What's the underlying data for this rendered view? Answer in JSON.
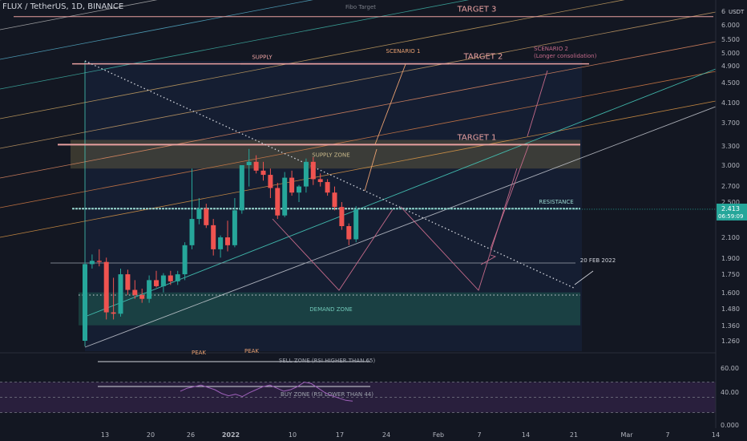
{
  "header": {
    "symbol": "FLUX / TetherUS, 1D, BINANCE",
    "currency": "USDT"
  },
  "colors": {
    "background": "#131722",
    "up": "#26a69a",
    "down": "#ef5350",
    "target_line": "#e8a0a0",
    "supply_fill": "#6b6240",
    "demand_fill": "#1f5c52",
    "rsi_band": "#7b3fa0",
    "axis_text": "#b2b5be"
  },
  "chart_data": {
    "type": "candlestick",
    "price_axis": {
      "ticks": [
        "6",
        "6.000",
        "5.500",
        "5.000",
        "4.900",
        "4.500",
        "4.100",
        "3.700",
        "3.300",
        "3.000",
        "2.700",
        "2.500",
        "2.300",
        "2.100",
        "1.900",
        "1.750",
        "1.600",
        "1.480",
        "1.360",
        "1.260"
      ],
      "scale": "log"
    },
    "rsi_axis": {
      "ticks": [
        "60.00",
        "40.00",
        "0.000"
      ]
    },
    "x_axis": {
      "ticks": [
        "13",
        "20",
        "26",
        "2022",
        "10",
        "17",
        "24",
        "Feb",
        "7",
        "14",
        "21",
        "Mar",
        "7",
        "14"
      ]
    },
    "current_price": "2.413",
    "countdown": "06:59:09",
    "candles": [
      {
        "o": 1.26,
        "h": 1.87,
        "l": 1.25,
        "c": 1.84
      },
      {
        "o": 1.84,
        "h": 1.93,
        "l": 1.8,
        "c": 1.87
      },
      {
        "o": 1.87,
        "h": 1.98,
        "l": 1.82,
        "c": 1.86
      },
      {
        "o": 1.86,
        "h": 1.9,
        "l": 1.4,
        "c": 1.45
      },
      {
        "o": 1.45,
        "h": 1.72,
        "l": 1.4,
        "c": 1.44
      },
      {
        "o": 1.44,
        "h": 1.8,
        "l": 1.42,
        "c": 1.75
      },
      {
        "o": 1.75,
        "h": 1.79,
        "l": 1.58,
        "c": 1.62
      },
      {
        "o": 1.62,
        "h": 1.7,
        "l": 1.55,
        "c": 1.58
      },
      {
        "o": 1.58,
        "h": 1.63,
        "l": 1.52,
        "c": 1.55
      },
      {
        "o": 1.55,
        "h": 1.74,
        "l": 1.52,
        "c": 1.7
      },
      {
        "o": 1.7,
        "h": 1.78,
        "l": 1.64,
        "c": 1.65
      },
      {
        "o": 1.65,
        "h": 1.76,
        "l": 1.6,
        "c": 1.74
      },
      {
        "o": 1.74,
        "h": 1.78,
        "l": 1.66,
        "c": 1.69
      },
      {
        "o": 1.69,
        "h": 1.78,
        "l": 1.66,
        "c": 1.75
      },
      {
        "o": 1.75,
        "h": 2.05,
        "l": 1.7,
        "c": 2.02
      },
      {
        "o": 2.02,
        "h": 2.95,
        "l": 1.98,
        "c": 2.3
      },
      {
        "o": 2.3,
        "h": 2.55,
        "l": 2.24,
        "c": 2.42
      },
      {
        "o": 2.42,
        "h": 2.48,
        "l": 2.2,
        "c": 2.23
      },
      {
        "o": 2.23,
        "h": 2.3,
        "l": 1.92,
        "c": 1.98
      },
      {
        "o": 1.98,
        "h": 2.12,
        "l": 1.9,
        "c": 2.1
      },
      {
        "o": 2.1,
        "h": 2.28,
        "l": 1.96,
        "c": 2.02
      },
      {
        "o": 2.02,
        "h": 2.55,
        "l": 2.0,
        "c": 2.4
      },
      {
        "o": 2.4,
        "h": 3.0,
        "l": 2.36,
        "c": 3.0
      },
      {
        "o": 3.0,
        "h": 3.25,
        "l": 2.7,
        "c": 3.05
      },
      {
        "o": 3.05,
        "h": 3.15,
        "l": 2.88,
        "c": 2.92
      },
      {
        "o": 2.92,
        "h": 3.05,
        "l": 2.78,
        "c": 2.86
      },
      {
        "o": 2.86,
        "h": 2.95,
        "l": 2.55,
        "c": 2.68
      },
      {
        "o": 2.68,
        "h": 2.75,
        "l": 2.3,
        "c": 2.34
      },
      {
        "o": 2.34,
        "h": 2.9,
        "l": 2.32,
        "c": 2.82
      },
      {
        "o": 2.82,
        "h": 2.92,
        "l": 2.58,
        "c": 2.62
      },
      {
        "o": 2.62,
        "h": 2.72,
        "l": 2.5,
        "c": 2.7
      },
      {
        "o": 2.7,
        "h": 3.1,
        "l": 2.62,
        "c": 3.05
      },
      {
        "o": 3.05,
        "h": 3.12,
        "l": 2.72,
        "c": 2.8
      },
      {
        "o": 2.8,
        "h": 2.88,
        "l": 2.7,
        "c": 2.76
      },
      {
        "o": 2.76,
        "h": 2.8,
        "l": 2.58,
        "c": 2.62
      },
      {
        "o": 2.62,
        "h": 2.7,
        "l": 2.4,
        "c": 2.44
      },
      {
        "o": 2.44,
        "h": 2.5,
        "l": 2.18,
        "c": 2.22
      },
      {
        "o": 2.22,
        "h": 2.25,
        "l": 2.02,
        "c": 2.08
      },
      {
        "o": 2.08,
        "h": 2.45,
        "l": 2.05,
        "c": 2.41
      }
    ],
    "levels": [
      {
        "label": "TARGET 3",
        "price": 6.25
      },
      {
        "label": "TARGET 2",
        "price": 4.95
      },
      {
        "label": "SUPPLY",
        "price": 4.95
      },
      {
        "label": "TARGET 1",
        "price": 3.32
      },
      {
        "label": "RESISTANCE",
        "price": 2.42
      },
      {
        "label": "20 FEB 2022",
        "price": 1.85
      }
    ],
    "zones": [
      {
        "label": "SUPPLY ZONE",
        "top": 3.4,
        "bottom": 2.95
      },
      {
        "label": "DEMAND ZONE",
        "top": 1.6,
        "bottom": 1.36
      }
    ],
    "rsi": {
      "sell_label": "SELL ZONE (RSI HIGHER THAN 65)",
      "buy_label": "BUY ZONE (RSI LOWER THAN 44)",
      "peak_labels": [
        "PEAK",
        "PEAK"
      ],
      "values": [
        58,
        62,
        64,
        66,
        63,
        60,
        55,
        52,
        54,
        51,
        56,
        60,
        64,
        66,
        62,
        58,
        60,
        64,
        70,
        68,
        62,
        56,
        52,
        49,
        46,
        45
      ]
    },
    "annotations": [
      "Fibo Target",
      "SCENARIO 1",
      "SCENARIO 2",
      "(Longer consolidation)"
    ]
  }
}
